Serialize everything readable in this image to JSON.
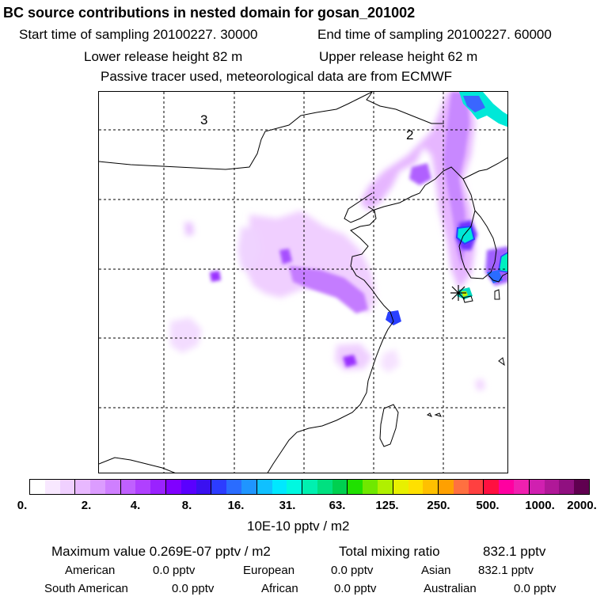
{
  "header": {
    "title": "BC  source contributions in nested domain for gosan_201002",
    "start_label": "Start time of sampling 20100227. 30000",
    "end_label": "End time of sampling 20100227. 60000",
    "lower_label": "Lower release height   82 m",
    "upper_label": "Upper release height   62 m",
    "tracer_label": "Passive tracer used, meteorological data are from ECMWF"
  },
  "map": {
    "region_labels": [
      "3",
      "2"
    ]
  },
  "colorbar": {
    "colors": [
      "#ffffff",
      "#f8e8ff",
      "#f0d0ff",
      "#e8b8ff",
      "#dc9cff",
      "#cf7fff",
      "#c060ff",
      "#b040ff",
      "#9a22ff",
      "#8000ff",
      "#5a00ff",
      "#3a10f0",
      "#2c3cff",
      "#2a6cff",
      "#1f95ff",
      "#10c0ff",
      "#00e8ff",
      "#00f8e0",
      "#00f0b0",
      "#00e080",
      "#00d050",
      "#20e000",
      "#70e800",
      "#b0f000",
      "#e8f000",
      "#ffe000",
      "#ffc000",
      "#ffa000",
      "#ff7040",
      "#ff4040",
      "#ff1040",
      "#ff00a0",
      "#f020b0",
      "#d020b0",
      "#b01898",
      "#901080",
      "#600050"
    ],
    "tick_labels": [
      "0.",
      "2.",
      "4.",
      "8.",
      "16.",
      "31.",
      "63.",
      "125.",
      "250.",
      "500.",
      "1000.",
      "2000."
    ],
    "unit": "10E-10 pptv / m2"
  },
  "stats": {
    "maximum": "Maximum value  0.269E-07 pptv / m2",
    "total": "Total mixing ratio",
    "total_value": "832.1 pptv",
    "american_label": "American",
    "american_value": "0.0 pptv",
    "european_label": "European",
    "european_value": "0.0 pptv",
    "asian_label": "Asian",
    "asian_value": "832.1 pptv",
    "south_american_label": "South American",
    "south_american_value": "0.0 pptv",
    "african_label": "African",
    "african_value": "0.0 pptv",
    "australian_label": "Australian",
    "australian_value": "0.0 pptv"
  }
}
